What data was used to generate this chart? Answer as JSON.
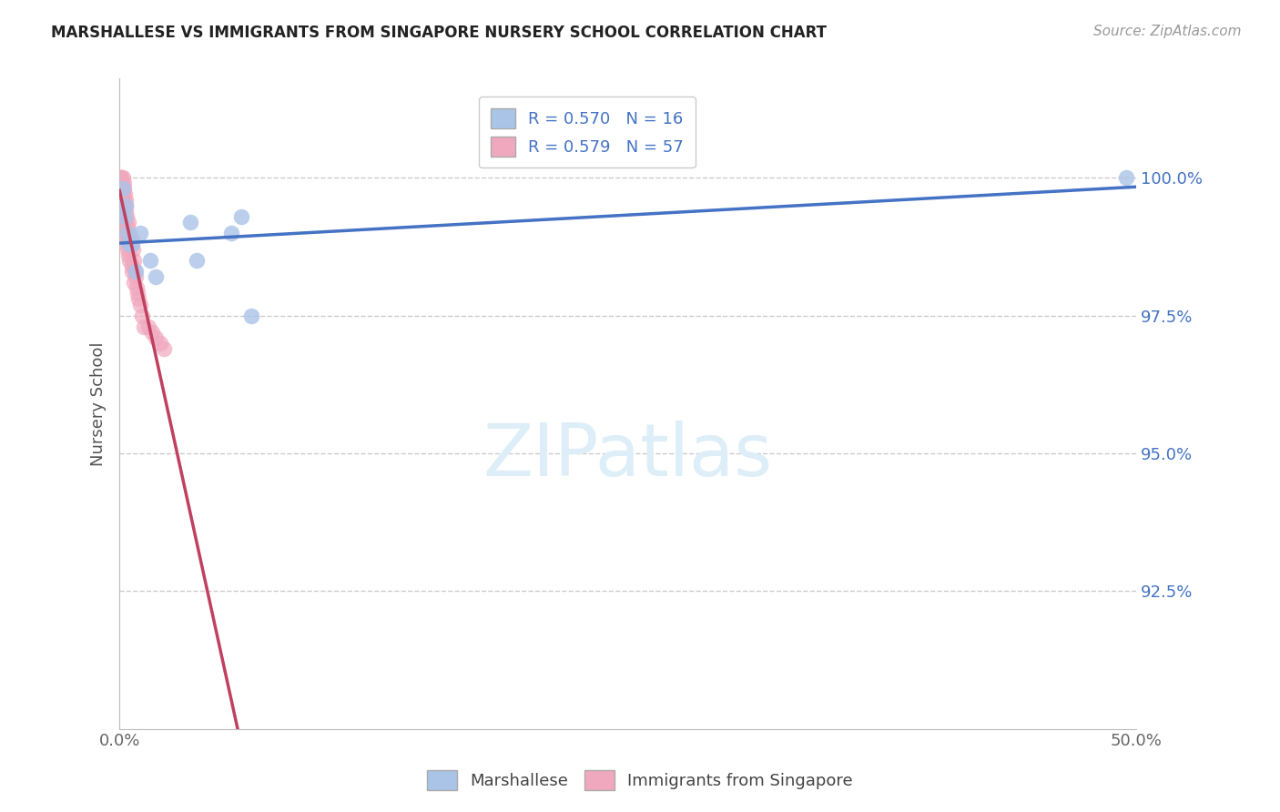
{
  "title": "MARSHALLESE VS IMMIGRANTS FROM SINGAPORE NURSERY SCHOOL CORRELATION CHART",
  "source": "Source: ZipAtlas.com",
  "ylabel_label": "Nursery School",
  "legend_labels": [
    "Marshallese",
    "Immigrants from Singapore"
  ],
  "blue_R": 0.57,
  "blue_N": 16,
  "pink_R": 0.579,
  "pink_N": 57,
  "blue_color": "#aac4e8",
  "pink_color": "#f0a8be",
  "blue_line_color": "#4472c4",
  "pink_line_color": "#c04060",
  "xlim": [
    0.0,
    50.0
  ],
  "ylim": [
    90.0,
    101.8
  ],
  "yticks": [
    92.5,
    95.0,
    97.5,
    100.0
  ],
  "blue_x": [
    0.15,
    0.25,
    0.5,
    1.5,
    1.8,
    3.5,
    3.8,
    5.5,
    6.0,
    6.5,
    0.3,
    0.4,
    0.6,
    0.8,
    1.0,
    49.5
  ],
  "blue_y": [
    99.8,
    99.3,
    98.8,
    98.5,
    98.2,
    99.2,
    98.5,
    99.0,
    99.3,
    97.5,
    99.5,
    99.0,
    98.8,
    98.3,
    99.0,
    100.0
  ],
  "pink_x": [
    0.05,
    0.05,
    0.08,
    0.08,
    0.1,
    0.1,
    0.1,
    0.12,
    0.12,
    0.15,
    0.15,
    0.15,
    0.18,
    0.18,
    0.2,
    0.2,
    0.2,
    0.22,
    0.22,
    0.25,
    0.25,
    0.28,
    0.28,
    0.3,
    0.3,
    0.3,
    0.32,
    0.35,
    0.35,
    0.38,
    0.4,
    0.4,
    0.42,
    0.45,
    0.45,
    0.5,
    0.5,
    0.55,
    0.6,
    0.6,
    0.65,
    0.7,
    0.75,
    0.8,
    0.85,
    0.9,
    0.95,
    1.0,
    1.1,
    1.2,
    1.4,
    1.6,
    1.8,
    2.0,
    2.2,
    0.6,
    0.7
  ],
  "pink_y": [
    100.0,
    99.8,
    100.0,
    99.9,
    100.0,
    99.8,
    99.7,
    99.9,
    99.6,
    100.0,
    99.8,
    99.5,
    99.7,
    99.4,
    99.9,
    99.6,
    99.3,
    99.8,
    99.2,
    99.7,
    99.1,
    99.6,
    99.0,
    99.5,
    99.2,
    98.9,
    99.4,
    99.3,
    98.8,
    99.1,
    99.0,
    98.7,
    98.9,
    99.2,
    98.6,
    99.0,
    98.5,
    98.8,
    98.9,
    98.4,
    98.7,
    98.5,
    98.3,
    98.2,
    98.0,
    97.9,
    97.8,
    97.7,
    97.5,
    97.3,
    97.3,
    97.2,
    97.1,
    97.0,
    96.9,
    98.3,
    98.1
  ]
}
